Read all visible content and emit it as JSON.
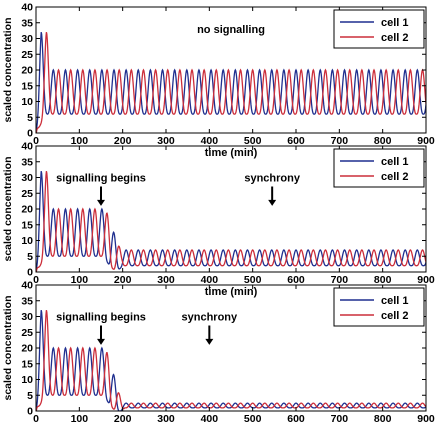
{
  "chart_data": [
    {
      "type": "line",
      "xlabel": "time (min)",
      "ylabel": "scaled concentration",
      "xlim": [
        0,
        900
      ],
      "ylim": [
        0,
        40
      ],
      "xticks": [
        0,
        100,
        200,
        300,
        400,
        500,
        600,
        700,
        800,
        900
      ],
      "yticks": [
        0,
        5,
        10,
        15,
        20,
        25,
        30,
        35,
        40
      ],
      "grid": false,
      "legend_position": "top-right",
      "series": [
        {
          "name": "cell 1",
          "color": "#1f2f8f",
          "model": {
            "period_min": 28,
            "first_peak": {
              "t": 12,
              "y": 32
            },
            "stage1": {
              "peak": 20,
              "trough": 6
            },
            "stage2": null
          }
        },
        {
          "name": "cell 2",
          "color": "#cc2e3a",
          "model": {
            "period_min": 28,
            "first_peak": {
              "t": 24,
              "y": 32
            },
            "stage1": {
              "peak": 20,
              "trough": 6
            },
            "stage2": null
          }
        }
      ],
      "annotations": [
        {
          "text": "no signalling",
          "x": 450,
          "y": 33,
          "arrow": false
        }
      ]
    },
    {
      "type": "line",
      "xlabel": "time (min)",
      "ylabel": "scaled concentration",
      "xlim": [
        0,
        900
      ],
      "ylim": [
        0,
        40
      ],
      "xticks": [
        0,
        100,
        200,
        300,
        400,
        500,
        600,
        700,
        800,
        900
      ],
      "yticks": [
        0,
        5,
        10,
        15,
        20,
        25,
        30,
        35,
        40
      ],
      "grid": false,
      "legend_position": "top-right",
      "series": [
        {
          "name": "cell 1",
          "color": "#1f2f8f",
          "model": {
            "period_min": 28,
            "first_peak": {
              "t": 12,
              "y": 32
            },
            "stage1": {
              "peak": 20,
              "trough": 5,
              "end": 155
            },
            "stage2": {
              "start": 200,
              "peak": 7,
              "trough": 2
            }
          }
        },
        {
          "name": "cell 2",
          "color": "#cc2e3a",
          "model": {
            "period_min": 28,
            "first_peak": {
              "t": 24,
              "y": 32
            },
            "stage1": {
              "peak": 20,
              "trough": 5,
              "end": 155
            },
            "stage2": {
              "start": 200,
              "peak": 7,
              "trough": 2
            }
          }
        }
      ],
      "annotations": [
        {
          "text": "signalling begins",
          "x": 150,
          "y": 30,
          "arrow": true,
          "arrow_to_y": 21
        },
        {
          "text": "synchrony",
          "x": 545,
          "y": 30,
          "arrow": true,
          "arrow_to_y": 21
        }
      ]
    },
    {
      "type": "line",
      "xlabel": "time (min)",
      "ylabel": "scaled concentration",
      "xlim": [
        0,
        900
      ],
      "ylim": [
        0,
        40
      ],
      "xticks": [
        0,
        100,
        200,
        300,
        400,
        500,
        600,
        700,
        800,
        900
      ],
      "yticks": [
        0,
        5,
        10,
        15,
        20,
        25,
        30,
        35,
        40
      ],
      "grid": false,
      "legend_position": "top-right",
      "series": [
        {
          "name": "cell 1",
          "color": "#1f2f8f",
          "model": {
            "period_min": 28,
            "first_peak": {
              "t": 12,
              "y": 32
            },
            "stage1": {
              "peak": 20,
              "trough": 5,
              "end": 155
            },
            "stage2": {
              "start": 205,
              "peak": 2.5,
              "trough": 1
            }
          }
        },
        {
          "name": "cell 2",
          "color": "#cc2e3a",
          "model": {
            "period_min": 28,
            "first_peak": {
              "t": 24,
              "y": 32
            },
            "stage1": {
              "peak": 20,
              "trough": 5,
              "end": 155
            },
            "stage2": {
              "start": 205,
              "peak": 2.5,
              "trough": 1
            }
          }
        }
      ],
      "annotations": [
        {
          "text": "signalling begins",
          "x": 150,
          "y": 30,
          "arrow": true,
          "arrow_to_y": 21
        },
        {
          "text": "synchrony",
          "x": 400,
          "y": 30,
          "arrow": true,
          "arrow_to_y": 21
        }
      ]
    }
  ]
}
